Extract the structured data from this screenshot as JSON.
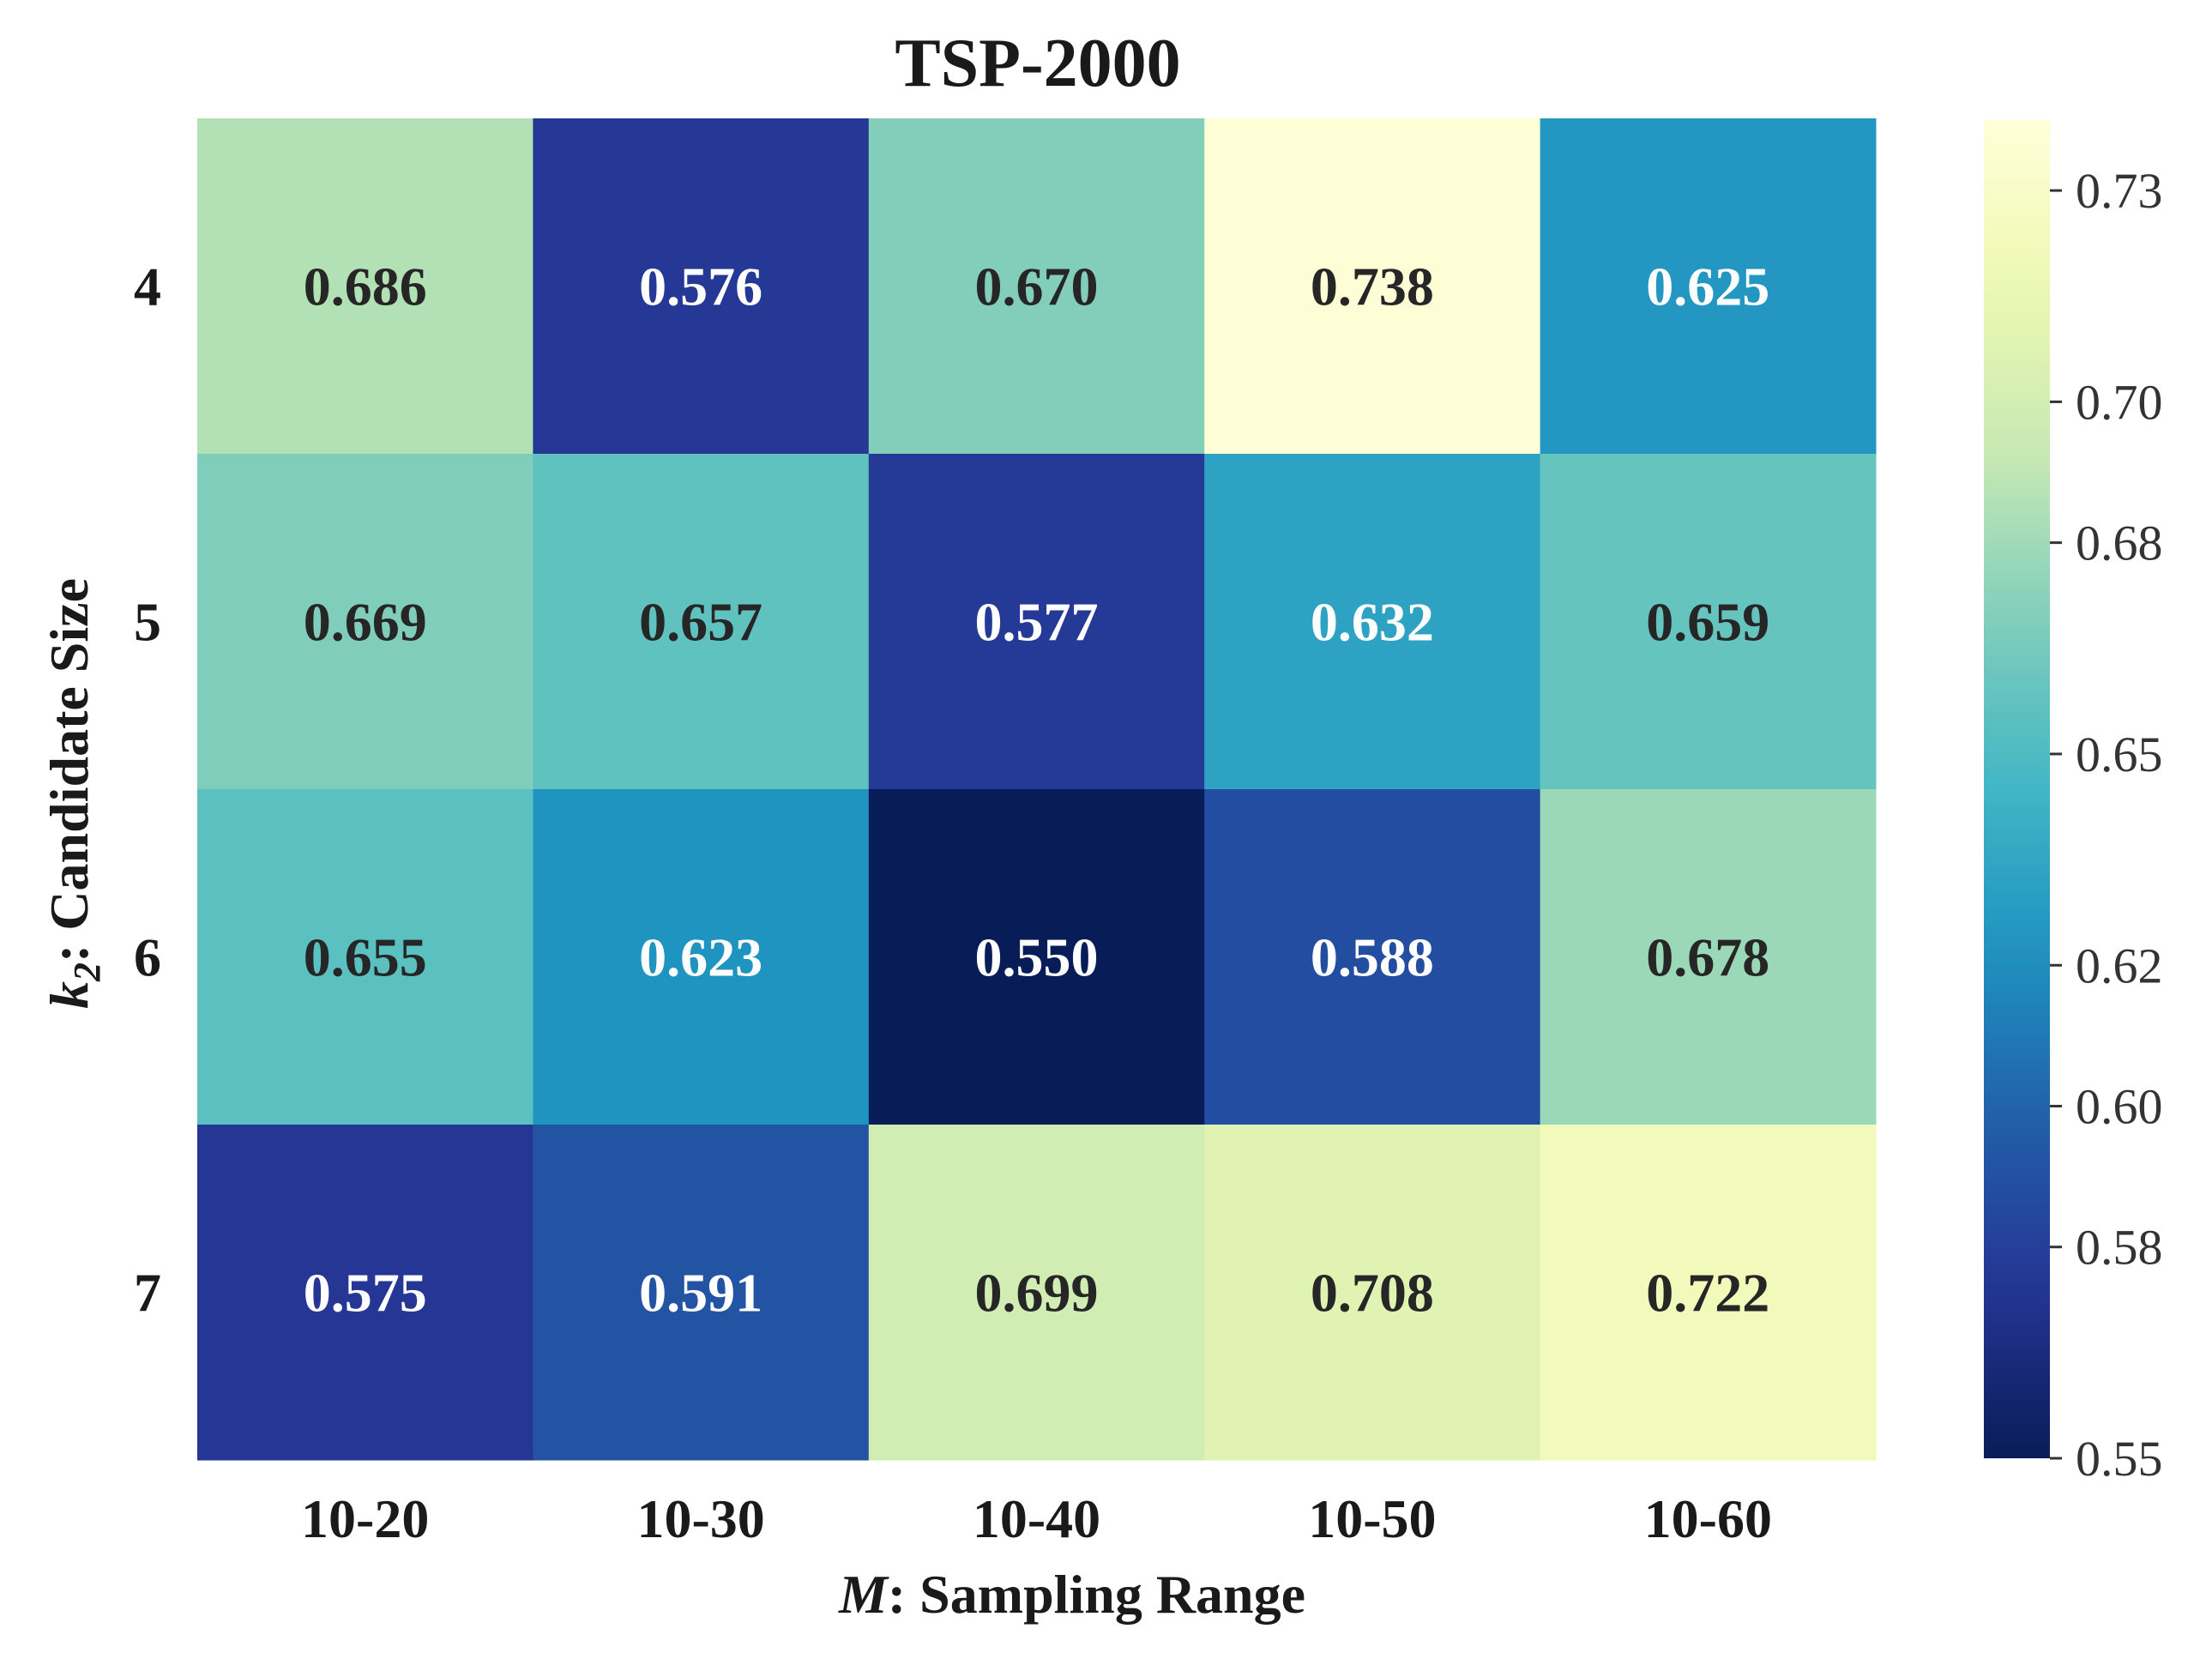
{
  "chart_data": {
    "type": "heatmap",
    "title": "TSP-2000",
    "xlabel_var": "M",
    "xlabel_rest": ": Sampling Range",
    "ylabel_var": "k",
    "ylabel_sub": "2",
    "ylabel_rest": ": Candidate Size",
    "x_categories": [
      "10-20",
      "10-30",
      "10-40",
      "10-50",
      "10-60"
    ],
    "y_categories": [
      "4",
      "5",
      "6",
      "7"
    ],
    "values": [
      [
        0.686,
        0.576,
        0.67,
        0.738,
        0.625
      ],
      [
        0.669,
        0.657,
        0.577,
        0.632,
        0.659
      ],
      [
        0.655,
        0.623,
        0.55,
        0.588,
        0.678
      ],
      [
        0.575,
        0.591,
        0.699,
        0.708,
        0.722
      ]
    ],
    "cell_labels": [
      [
        "0.686",
        "0.576",
        "0.670",
        "0.738",
        "0.625"
      ],
      [
        "0.669",
        "0.657",
        "0.577",
        "0.632",
        "0.659"
      ],
      [
        "0.655",
        "0.623",
        "0.550",
        "0.588",
        "0.678"
      ],
      [
        "0.575",
        "0.591",
        "0.699",
        "0.708",
        "0.722"
      ]
    ],
    "colorbar": {
      "colormap": "YlGnBu",
      "range": [
        0.55,
        0.74
      ],
      "ticks": [
        0.55,
        0.58,
        0.6,
        0.62,
        0.65,
        0.68,
        0.7,
        0.73
      ],
      "tick_labels": [
        "0.55",
        "0.58",
        "0.60",
        "0.62",
        "0.65",
        "0.68",
        "0.70",
        "0.73"
      ]
    },
    "grid": false
  }
}
